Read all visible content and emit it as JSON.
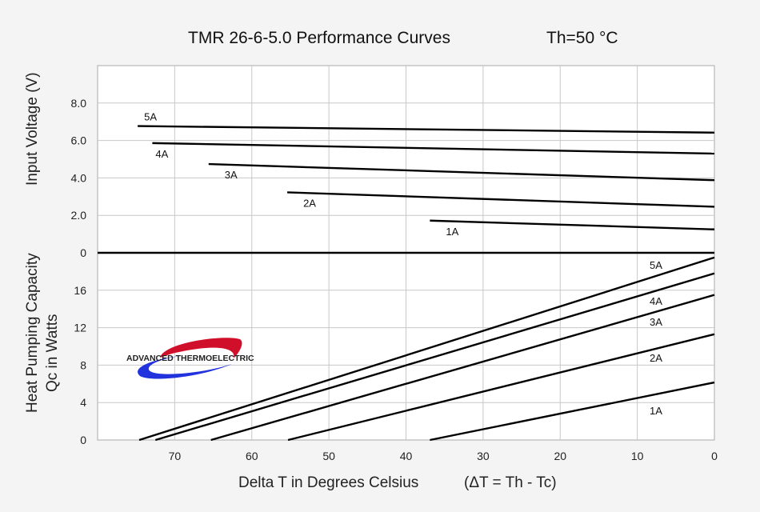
{
  "chart_data": {
    "type": "line",
    "title": "TMR 26-6-5.0 Performance Curves",
    "subtitle": "Th=50 °C",
    "xlabel": "Delta T in Degrees Celsius",
    "xlabel_note": "(ΔT = Th - Tc)",
    "xlim": [
      80,
      0
    ],
    "xticks": [
      "70",
      "60",
      "50",
      "40",
      "30",
      "20",
      "10",
      "0"
    ],
    "xtick_values": [
      70,
      60,
      50,
      40,
      30,
      20,
      10,
      0
    ],
    "grid": true,
    "logo_text": "ADVANCED THERMOELECTRIC",
    "panels": [
      {
        "name": "voltage",
        "ylabel": "Input Voltage (V)",
        "ylim": [
          0,
          10
        ],
        "yticks": [
          "0",
          "2.0",
          "4.0",
          "6.0",
          "8.0"
        ],
        "ytick_values": [
          0,
          2,
          4,
          6,
          8
        ],
        "series": [
          {
            "name": "5A",
            "x": [
              74.8,
              0
            ],
            "y": [
              6.77,
              6.42
            ]
          },
          {
            "name": "4A",
            "x": [
              72.9,
              0
            ],
            "y": [
              5.86,
              5.3
            ]
          },
          {
            "name": "3A",
            "x": [
              65.6,
              0
            ],
            "y": [
              4.74,
              3.88
            ]
          },
          {
            "name": "2A",
            "x": [
              55.4,
              0
            ],
            "y": [
              3.23,
              2.46
            ]
          },
          {
            "name": "1A",
            "x": [
              36.9,
              0
            ],
            "y": [
              1.72,
              1.25
            ]
          }
        ]
      },
      {
        "name": "heat-pumping",
        "ylabel": "Heat Pumping Capacity",
        "ylabel2": "Qc in Watts",
        "ylim": [
          0,
          20
        ],
        "yticks": [
          "0",
          "4",
          "8",
          "12",
          "16"
        ],
        "ytick_values": [
          0,
          4,
          8,
          12,
          16
        ],
        "series": [
          {
            "name": "5A",
            "x": [
              74.6,
              0
            ],
            "y": [
              0,
              19.5
            ]
          },
          {
            "name": "4A",
            "x": [
              72.5,
              0
            ],
            "y": [
              0,
              17.8
            ]
          },
          {
            "name": "3A",
            "x": [
              65.3,
              0
            ],
            "y": [
              0,
              15.5
            ]
          },
          {
            "name": "2A",
            "x": [
              55.3,
              0
            ],
            "y": [
              0,
              11.3
            ]
          },
          {
            "name": "1A",
            "x": [
              36.9,
              0
            ],
            "y": [
              0,
              6.15
            ]
          }
        ]
      }
    ]
  }
}
